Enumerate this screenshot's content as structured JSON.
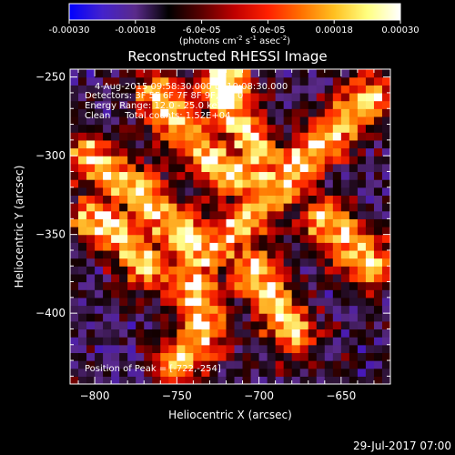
{
  "chart_data": {
    "type": "heatmap",
    "title": "Reconstructed RHESSI Image",
    "xlabel": "Heliocentric X (arcsec)",
    "ylabel": "Heliocentric Y (arcsec)",
    "xlim": [
      -815,
      -620
    ],
    "ylim": [
      -445,
      -245
    ],
    "xticks": [
      -800,
      -750,
      -700,
      -650
    ],
    "yticks": [
      -400,
      -350,
      -300,
      -250
    ],
    "colorbar": {
      "range": [
        -0.0003,
        0.0003
      ],
      "ticks": [
        "-0.00030",
        "-0.00018",
        "-6.0e-05",
        "6.0e-05",
        "0.00018",
        "0.00030"
      ],
      "unit_text": "(photons cm",
      "unit_exp1": "-2",
      "unit_mid": " s",
      "unit_exp2": "-1",
      "unit_end": " asec",
      "unit_exp3": "-2",
      "unit_close": ")",
      "colors": [
        "#0000ff",
        "#4422cc",
        "#5a2a8a",
        "#000000",
        "#5a0000",
        "#c00000",
        "#ff2000",
        "#ff7000",
        "#ffc020",
        "#ffff80",
        "#ffffff"
      ]
    },
    "annotations": [
      "4-Aug-2015 09:58:30.000 to 10:08:30.000",
      "Detectors: 3F 5F 6F 7F 8F 9F, Att 0",
      "Energy Range: 12.0 - 25.0 keV",
      "Clean     Total counts: 1.52E+04"
    ],
    "peak_label": "Position of Peak = [-722,-254]",
    "peak": [
      -722,
      -254
    ],
    "bright_ridges": [
      [
        [
          -805,
          -300
        ],
        [
          -775,
          -322
        ],
        [
          -752,
          -345
        ],
        [
          -732,
          -362
        ],
        [
          -712,
          -345
        ],
        [
          -690,
          -320
        ],
        [
          -670,
          -300
        ],
        [
          -650,
          -278
        ],
        [
          -630,
          -262
        ]
      ],
      [
        [
          -760,
          -262
        ],
        [
          -742,
          -288
        ],
        [
          -722,
          -310
        ],
        [
          -700,
          -318
        ]
      ],
      [
        [
          -722,
          -254
        ],
        [
          -712,
          -278
        ],
        [
          -700,
          -300
        ]
      ],
      [
        [
          -800,
          -340
        ],
        [
          -782,
          -350
        ],
        [
          -768,
          -370
        ]
      ],
      [
        [
          -745,
          -375
        ],
        [
          -735,
          -395
        ],
        [
          -735,
          -415
        ],
        [
          -748,
          -430
        ]
      ],
      [
        [
          -705,
          -372
        ],
        [
          -690,
          -392
        ],
        [
          -680,
          -412
        ]
      ],
      [
        [
          -660,
          -340
        ],
        [
          -645,
          -355
        ],
        [
          -632,
          -370
        ]
      ]
    ],
    "footer_date": "29-Jul-2017 07:00"
  }
}
